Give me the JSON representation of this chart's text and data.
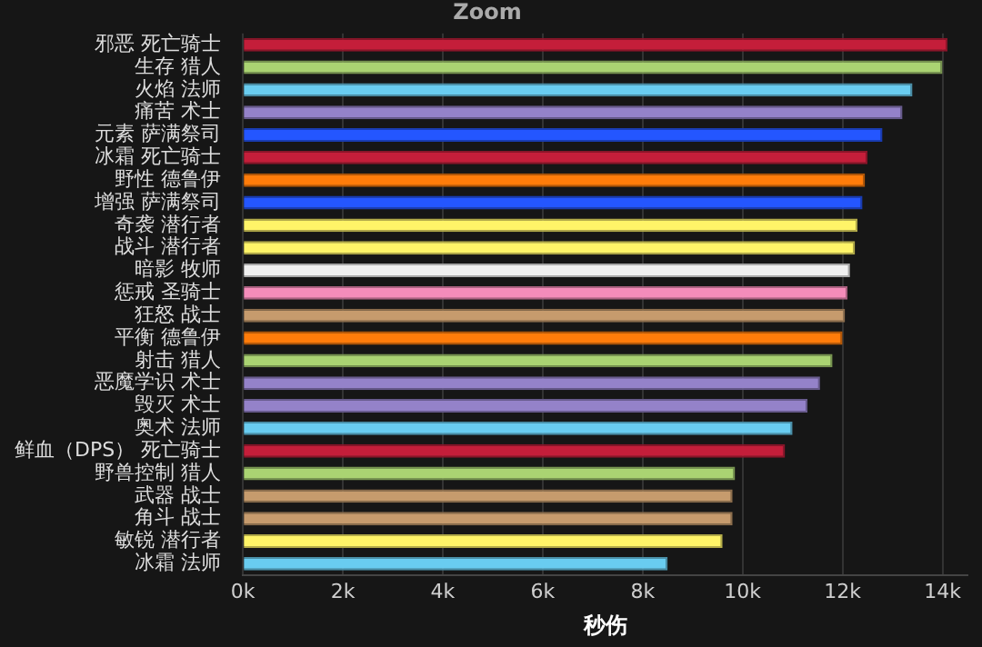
{
  "chart_data": {
    "type": "bar",
    "orientation": "horizontal",
    "title": "Zoom",
    "xlabel": "秒伤",
    "categories": [
      "邪恶 死亡骑士",
      "生存 猎人",
      "火焰 法师",
      "痛苦 术士",
      "元素 萨满祭司",
      "冰霜 死亡骑士",
      "野性 德鲁伊",
      "增强 萨满祭司",
      "奇袭 潜行者",
      "战斗 潜行者",
      "暗影 牧师",
      "惩戒 圣骑士",
      "狂怒 战士",
      "平衡 德鲁伊",
      "射击 猎人",
      "恶魔学识 术士",
      "毁灭 术士",
      "奥术 法师",
      "鲜血（DPS） 死亡骑士",
      "野兽控制 猎人",
      "武器 战士",
      "角斗 战士",
      "敏锐 潜行者",
      "冰霜 法师"
    ],
    "values": [
      14100,
      14000,
      13400,
      13200,
      12800,
      12500,
      12450,
      12400,
      12300,
      12250,
      12150,
      12100,
      12050,
      12000,
      11800,
      11550,
      11300,
      11000,
      10850,
      9850,
      9800,
      9800,
      9600,
      8500
    ],
    "colors": [
      "#c41e3a",
      "#aad372",
      "#69ccf0",
      "#9482c9",
      "#2456ff",
      "#c41e3a",
      "#ff7c0a",
      "#2456ff",
      "#fff468",
      "#fff468",
      "#f0f0f0",
      "#f48cba",
      "#c69b6d",
      "#ff7c0a",
      "#aad372",
      "#9482c9",
      "#9482c9",
      "#69ccf0",
      "#c41e3a",
      "#aad372",
      "#c69b6d",
      "#c69b6d",
      "#fff468",
      "#69ccf0"
    ],
    "xlim": [
      0,
      14500
    ],
    "xticks": [
      {
        "value": 0,
        "label": "0k"
      },
      {
        "value": 2000,
        "label": "2k"
      },
      {
        "value": 4000,
        "label": "4k"
      },
      {
        "value": 6000,
        "label": "6k"
      },
      {
        "value": 8000,
        "label": "8k"
      },
      {
        "value": 10000,
        "label": "10k"
      },
      {
        "value": 12000,
        "label": "12k"
      },
      {
        "value": 14000,
        "label": "14k"
      }
    ],
    "grid": "x"
  }
}
